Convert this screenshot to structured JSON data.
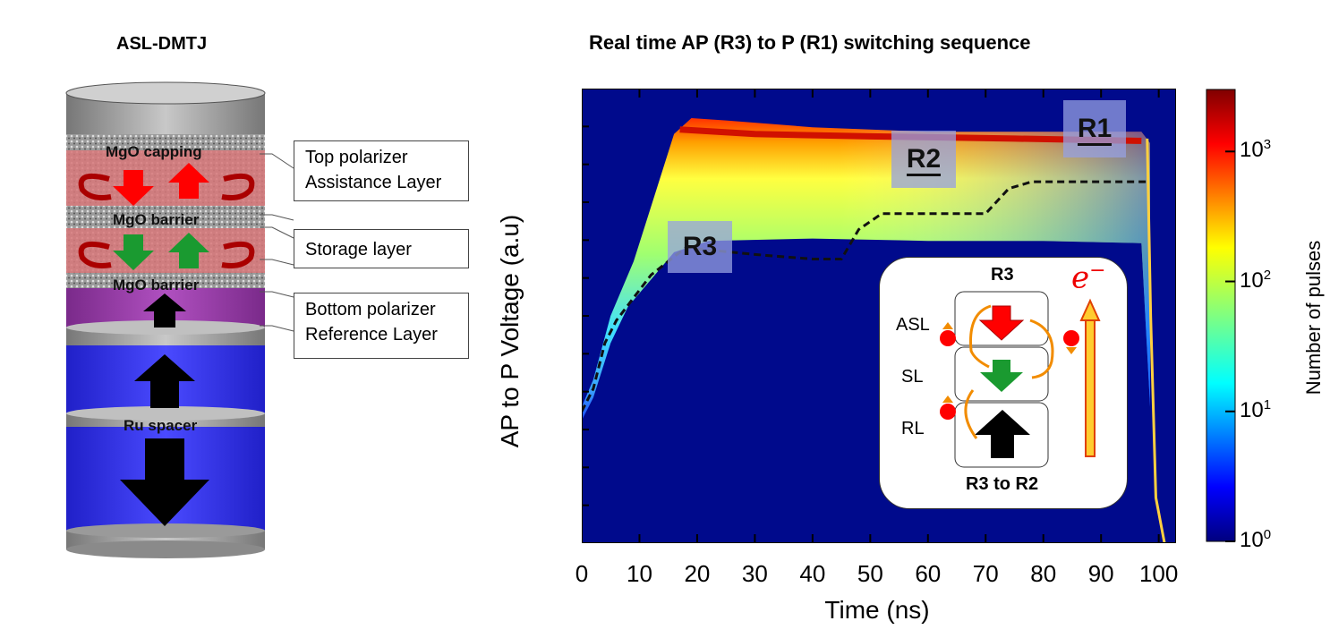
{
  "left_panel": {
    "title": "ASL-DMTJ",
    "layers": {
      "mgo_capping": "MgO capping",
      "mgo_barrier_top": "MgO barrier",
      "mgo_barrier_bottom": "MgO barrier",
      "ru_spacer": "Ru spacer"
    },
    "callouts": {
      "top_line1": "Top polarizer",
      "top_line2": "Assistance Layer",
      "storage": "Storage layer",
      "bottom_line1": "Bottom polarizer",
      "bottom_line2": "Reference Layer"
    },
    "colors": {
      "pillar_gray": "#a9a9a9",
      "polarizer_red_band": "#d8787a",
      "storage_red_band": "#d8787a",
      "reference_purple": "#9a3fa4",
      "blue_layer": "#3a3af0"
    }
  },
  "chart_data": {
    "type": "heatmap",
    "title": "Real time AP (R3) to P (R1) switching sequence",
    "xlabel": "Time (ns)",
    "ylabel": "AP to P Voltage (a.u)",
    "xlim": [
      0,
      103
    ],
    "x_ticks": [
      0,
      10,
      20,
      30,
      40,
      50,
      60,
      70,
      80,
      90,
      100
    ],
    "colorbar": {
      "label": "Number of pulses",
      "scale": "log",
      "range": [
        1,
        3000
      ],
      "ticks": [
        {
          "base": "10",
          "exp": "0"
        },
        {
          "base": "10",
          "exp": "1"
        },
        {
          "base": "10",
          "exp": "2"
        },
        {
          "base": "10",
          "exp": "3"
        }
      ]
    },
    "state_labels": [
      "R1",
      "R2",
      "R3"
    ],
    "dashed_trace": {
      "x": [
        0,
        2,
        4,
        6,
        9,
        12,
        15,
        18,
        22,
        30,
        40,
        45,
        48,
        52,
        56,
        62,
        70,
        74,
        78,
        85,
        92,
        98
      ],
      "y": [
        0.29,
        0.34,
        0.44,
        0.49,
        0.54,
        0.59,
        0.62,
        0.65,
        0.645,
        0.635,
        0.625,
        0.625,
        0.69,
        0.725,
        0.725,
        0.725,
        0.725,
        0.78,
        0.795,
        0.795,
        0.795,
        0.795
      ]
    },
    "ylim": [
      0,
      1
    ]
  },
  "inset": {
    "title": "R3",
    "caption": "R3 to R2",
    "labels": [
      "ASL",
      "SL",
      "RL"
    ],
    "electron": "e",
    "electron_sup": "−"
  }
}
